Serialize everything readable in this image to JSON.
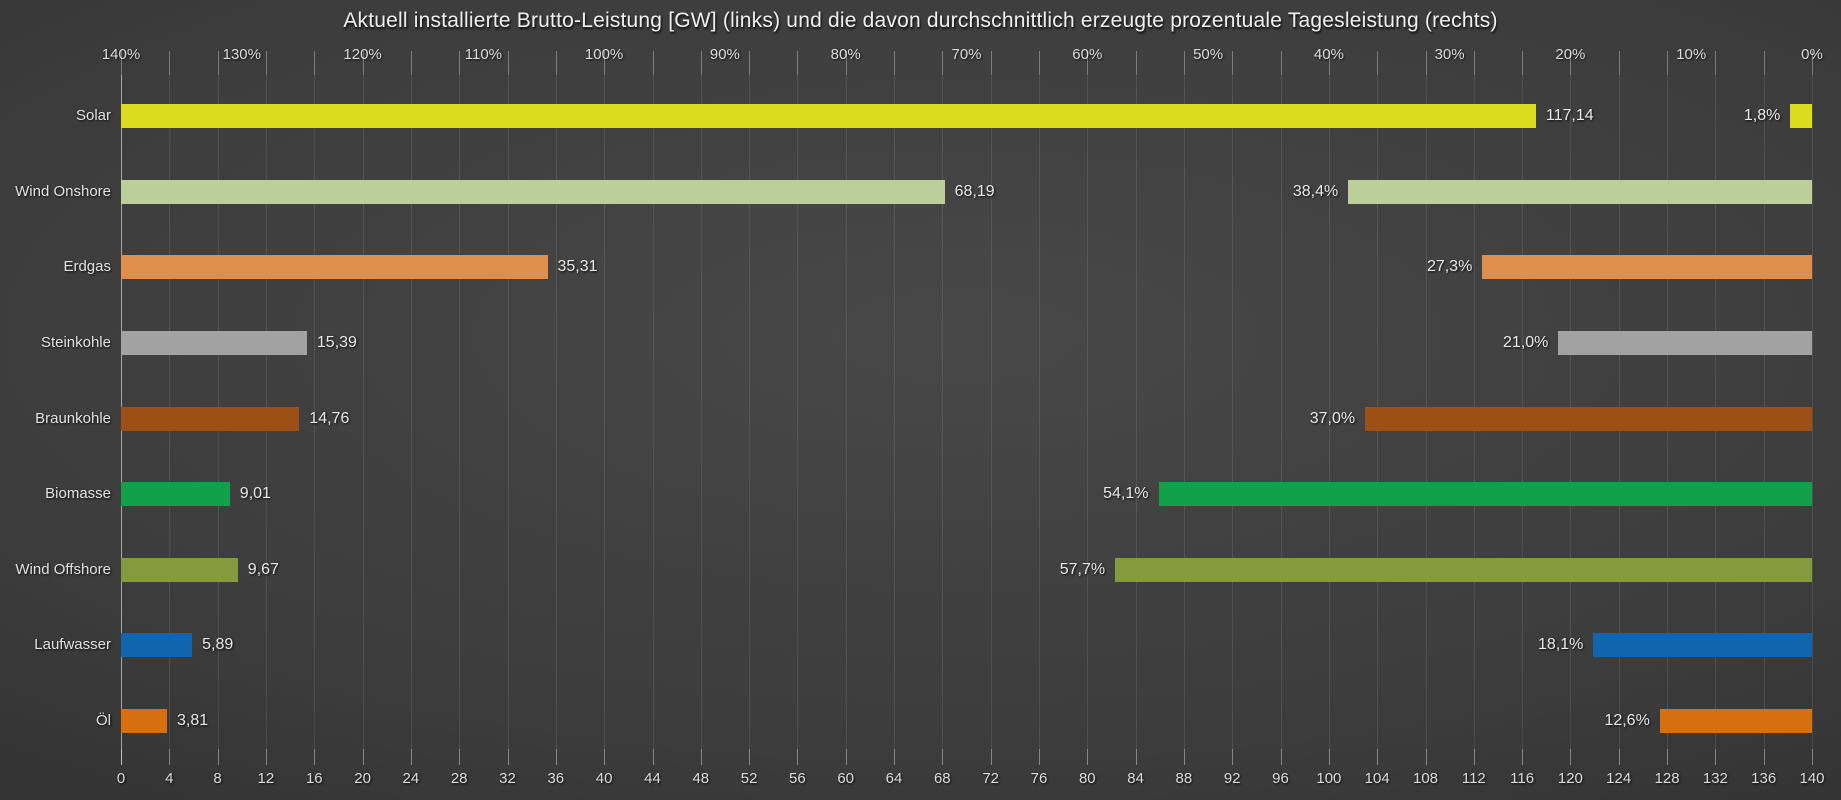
{
  "chart_data": {
    "type": "bar",
    "orientation": "horizontal",
    "title": "Aktuell installierte Brutto-Leistung [GW] (links) und die davon durchschnittlich erzeugte prozentuale Tagesleistung (rechts)",
    "categories": [
      "Solar",
      "Wind Onshore",
      "Erdgas",
      "Steinkohle",
      "Braunkohle",
      "Biomasse",
      "Wind Offshore",
      "Laufwasser",
      "Öl"
    ],
    "series": [
      {
        "name": "Aktuell installierte Brutto-Leistung [GW]",
        "side": "left",
        "axis": "bottom",
        "unit": "GW",
        "values": [
          117.14,
          68.19,
          35.31,
          15.39,
          14.76,
          9.01,
          9.67,
          5.89,
          3.81
        ],
        "labels": [
          "117,14",
          "68,19",
          "35,31",
          "15,39",
          "14,76",
          "9,01",
          "9,67",
          "5,89",
          "3,81"
        ]
      },
      {
        "name": "Durchschnittlich erzeugte prozentuale Tagesleistung",
        "side": "right",
        "axis": "top",
        "unit": "%",
        "values": [
          1.8,
          38.4,
          27.3,
          21.0,
          37.0,
          54.1,
          57.7,
          18.1,
          12.6
        ],
        "labels": [
          "1,8%",
          "38,4%",
          "27,3%",
          "21,0%",
          "37,0%",
          "54,1%",
          "57,7%",
          "18,1%",
          "12,6%"
        ]
      }
    ],
    "bar_colors": [
      "#dcdc1e",
      "#bccf9b",
      "#df8e4b",
      "#a2a2a2",
      "#9e4f16",
      "#12a04b",
      "#85993f",
      "#1065ae",
      "#d66f10"
    ],
    "bottom_axis": {
      "min": 0,
      "max": 140,
      "step": 4,
      "tick_labels": [
        "0",
        "4",
        "8",
        "12",
        "16",
        "20",
        "24",
        "28",
        "32",
        "36",
        "40",
        "44",
        "48",
        "52",
        "56",
        "60",
        "64",
        "68",
        "72",
        "76",
        "80",
        "84",
        "88",
        "92",
        "96",
        "100",
        "104",
        "108",
        "112",
        "116",
        "120",
        "124",
        "128",
        "132",
        "136",
        "140"
      ]
    },
    "top_axis": {
      "min": 0,
      "max": 140,
      "step": 10,
      "reversed": true,
      "tick_labels": [
        "140%",
        "130%",
        "120%",
        "110%",
        "100%",
        "90%",
        "80%",
        "70%",
        "60%",
        "50%",
        "40%",
        "30%",
        "20%",
        "10%",
        "0%"
      ]
    },
    "grid": true,
    "legend": "none",
    "ui_colors": {
      "background_center": "#484848",
      "background_edge": "#232323",
      "gridline": "#4e4e4e",
      "axis_line": "#9a9a9a",
      "text": "#e9e9e9"
    }
  }
}
